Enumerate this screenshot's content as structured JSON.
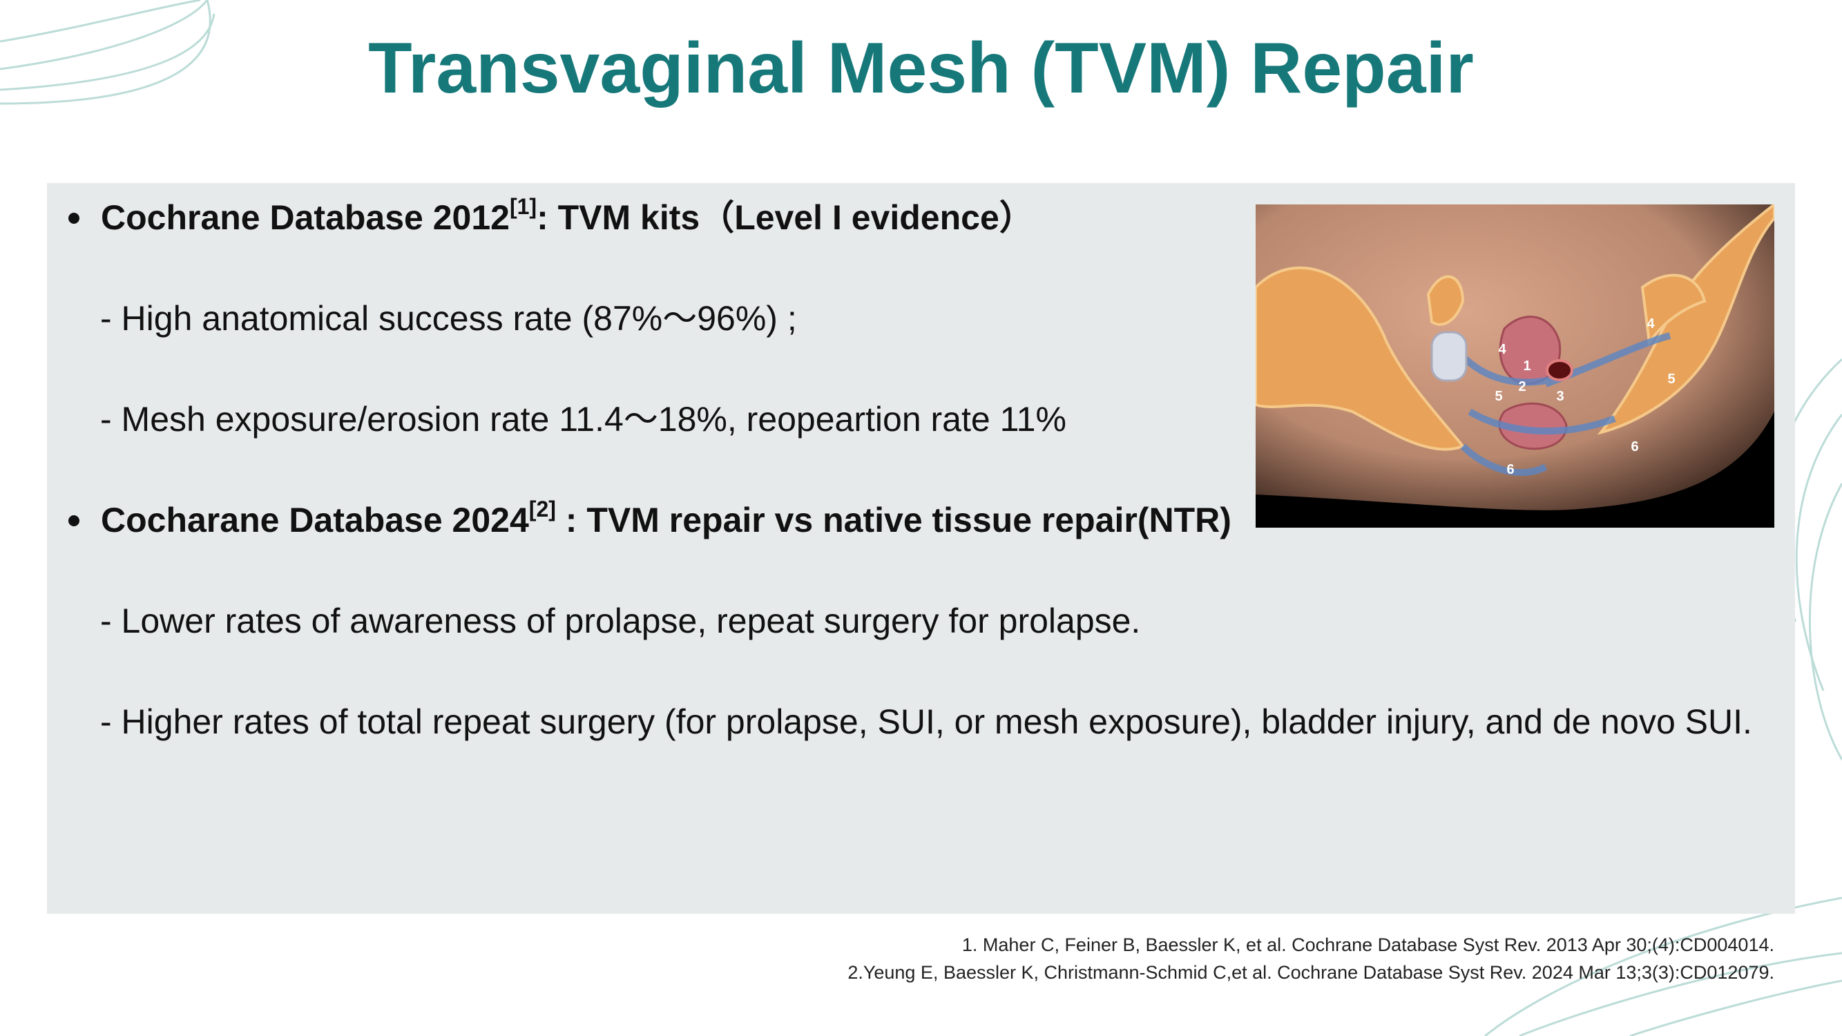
{
  "title": "Transvaginal Mesh (TVM) Repair",
  "bullets": [
    {
      "head": "Cochrane Database 2012",
      "sup": "[1]",
      "rest": ": TVM kits（Level I evidence）",
      "subs": [
        "- High anatomical success rate (87%～96%) ;",
        "- Mesh exposure/erosion rate 11.4～18%, reopeartion rate 11%"
      ]
    },
    {
      "head": "Cocharane Database 2024",
      "sup": "[2]",
      "rest": " : TVM repair vs native tissue repair(NTR)",
      "subs": [
        "- Lower rates of awareness of prolapse, repeat surgery for prolapse.",
        "- Higher rates of total repeat surgery (for prolapse, SUI, or mesh exposure), bladder injury, and de novo SUI."
      ]
    }
  ],
  "figure": {
    "labels": [
      "4",
      "4",
      "1",
      "2",
      "5",
      "5",
      "3",
      "6",
      "6"
    ]
  },
  "references": [
    "1. Maher C, Feiner B, Baessler K, et al. Cochrane Database Syst Rev. 2013 Apr 30;(4):CD004014.",
    "2.Yeung E, Baessler K, Christmann-Schmid C,et al. Cochrane Database Syst Rev. 2024 Mar 13;3(3):CD012079."
  ]
}
